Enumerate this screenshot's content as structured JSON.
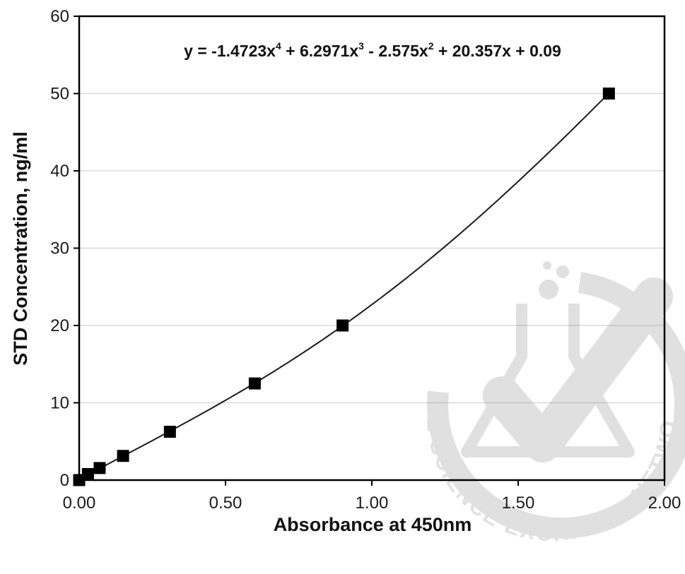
{
  "chart_data": {
    "type": "scatter",
    "title": "",
    "xlabel": "Absorbance at 450nm",
    "ylabel": "STD Concentration, ng/ml",
    "xlim": [
      0,
      2
    ],
    "ylim": [
      0,
      60
    ],
    "xticks": [
      "0.00",
      "0.50",
      "1.00",
      "1.50",
      "2.00"
    ],
    "xtick_values": [
      0,
      0.5,
      1,
      1.5,
      2
    ],
    "yticks": [
      "0",
      "10",
      "20",
      "30",
      "40",
      "50",
      "60"
    ],
    "ytick_values": [
      0,
      10,
      20,
      30,
      40,
      50,
      60
    ],
    "grid": "horizontal",
    "legend": "none",
    "marker": "square",
    "series": [
      {
        "x": [
          0.0,
          0.03,
          0.07,
          0.15,
          0.31,
          0.6,
          0.9,
          1.81
        ],
        "y": [
          0,
          0.78,
          1.56,
          3.13,
          6.25,
          12.5,
          20,
          50
        ]
      }
    ],
    "trendline": {
      "type": "polynomial",
      "coefficients": [
        -1.4723,
        6.2971,
        -2.575,
        20.357,
        0.09
      ],
      "x_range": [
        0,
        1.81
      ],
      "equation": {
        "lead": "y = -1.4723x",
        "p4": "4",
        "t3": " + 6.2971x",
        "p3": "3",
        "t2": " - 2.575x",
        "p2": "2",
        "tail": " + 20.357x + 0.09"
      }
    },
    "colors": {
      "marker": "#000000",
      "line": "#1a1a1a",
      "grid": "#d9d9d9",
      "axis": "#000000"
    }
  },
  "watermark": {
    "text": "THE SCIENCE EXCHANGE NETWORK",
    "icon": "checkmark-flask-seal"
  }
}
